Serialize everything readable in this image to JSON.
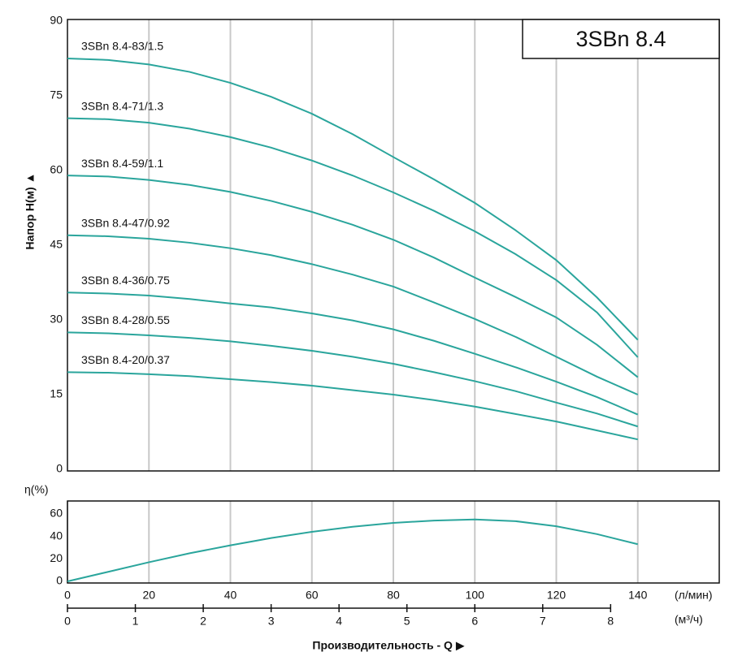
{
  "chart_data": [
    {
      "type": "line",
      "title": "3SBn 8.4",
      "y_label": "Напор H(м) ▲",
      "x": [
        0,
        10,
        20,
        30,
        40,
        50,
        60,
        70,
        80,
        90,
        100,
        110,
        120,
        130,
        140
      ],
      "xlim": [
        0,
        160
      ],
      "ylim": [
        0,
        90
      ],
      "xticks": [
        20,
        40,
        60,
        80,
        100,
        120,
        140
      ],
      "yticks": [
        0,
        15,
        30,
        45,
        60,
        75,
        90
      ],
      "grid": "x",
      "series": [
        {
          "name": "3SBn 8.4-83/1.5",
          "color": "#2aa59c",
          "values": [
            82.5,
            82.2,
            81.3,
            79.8,
            77.6,
            74.8,
            71.4,
            67.3,
            62.7,
            58.2,
            53.5,
            48,
            42,
            34.5,
            26
          ]
        },
        {
          "name": "3SBn 8.4-71/1.3",
          "color": "#2aa59c",
          "values": [
            70.5,
            70.3,
            69.6,
            68.4,
            66.7,
            64.6,
            62,
            59,
            55.6,
            51.9,
            47.8,
            43.2,
            38,
            31.5,
            22.5
          ]
        },
        {
          "name": "3SBn 8.4-59/1.1",
          "color": "#2aa59c",
          "values": [
            59,
            58.8,
            58.1,
            57.1,
            55.7,
            53.9,
            51.7,
            49.1,
            46.1,
            42.5,
            38.5,
            34.6,
            30.5,
            25,
            18.5
          ]
        },
        {
          "name": "3SBn 8.4-47/0.92",
          "color": "#2aa59c",
          "values": [
            47,
            46.8,
            46.3,
            45.5,
            44.4,
            43,
            41.2,
            39.1,
            36.7,
            33.5,
            30.2,
            26.6,
            22.6,
            18.6,
            15
          ]
        },
        {
          "name": "3SBn 8.4-36/0.75",
          "color": "#2aa59c",
          "values": [
            35.5,
            35.3,
            34.9,
            34.2,
            33.3,
            32.5,
            31.3,
            29.9,
            28.1,
            25.8,
            23.2,
            20.5,
            17.6,
            14.5,
            11
          ]
        },
        {
          "name": "3SBn 8.4-28/0.55",
          "color": "#2aa59c",
          "values": [
            27.5,
            27.3,
            26.9,
            26.4,
            25.7,
            24.8,
            23.8,
            22.6,
            21.2,
            19.5,
            17.7,
            15.7,
            13.4,
            11.2,
            8.6
          ]
        },
        {
          "name": "3SBn 8.4-20/0.37",
          "color": "#2aa59c",
          "values": [
            19.5,
            19.4,
            19.1,
            18.7,
            18.1,
            17.5,
            16.8,
            15.9,
            15,
            13.9,
            12.6,
            11.1,
            9.6,
            7.8,
            6
          ]
        }
      ]
    },
    {
      "type": "line",
      "y_label": "η(%)",
      "x_label": "Производительность - Q ▶",
      "x_unit": "(л/мин)",
      "x2_unit": "(м³/ч)",
      "x": [
        0,
        10,
        20,
        30,
        40,
        50,
        60,
        70,
        80,
        90,
        100,
        110,
        120,
        130,
        140
      ],
      "xlim": [
        0,
        160
      ],
      "ylim": [
        0,
        70
      ],
      "x2lim": [
        0,
        9.6
      ],
      "xticks": [
        0,
        20,
        40,
        60,
        80,
        100,
        120,
        140
      ],
      "x2ticks": [
        0,
        1,
        2,
        3,
        4,
        5,
        6,
        7,
        8
      ],
      "yticks": [
        0,
        20,
        40,
        60
      ],
      "grid": "x",
      "series": [
        {
          "color": "#2aa59c",
          "values": [
            0,
            8.5,
            17,
            25,
            32,
            38.5,
            44,
            48.5,
            52,
            54,
            55,
            53.5,
            49,
            42,
            33
          ]
        }
      ]
    }
  ]
}
